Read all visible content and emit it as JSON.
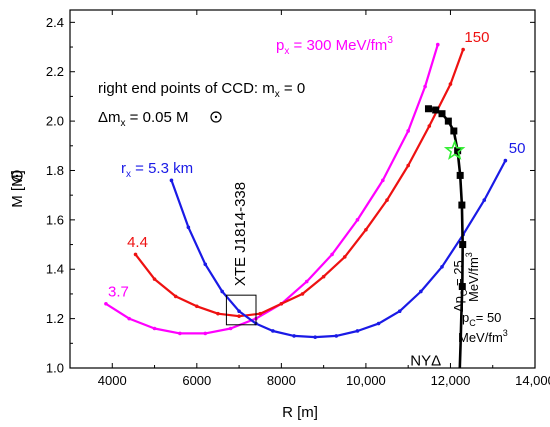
{
  "chart_data": {
    "type": "line",
    "xlabel": "R [m]",
    "ylabel_main": "M [M",
    "ylabel_close": "]",
    "xlim": [
      3000,
      14000
    ],
    "ylim": [
      1.0,
      2.45
    ],
    "x_ticks": [
      4000,
      6000,
      8000,
      10000,
      12000,
      14000
    ],
    "x_tick_labels": [
      "4000",
      "6000",
      "8000",
      "10,000",
      "12,000",
      "14,000"
    ],
    "y_ticks": [
      1.0,
      1.2,
      1.4,
      1.6,
      1.8,
      2.0,
      2.2,
      2.4
    ],
    "y_tick_labels": [
      "1.0",
      "1.2",
      "1.4",
      "1.6",
      "1.8",
      "2.0",
      "2.2",
      "2.4"
    ],
    "colors": {
      "magenta": "#ff00ff",
      "red": "#ee1111",
      "blue": "#1a1ae6",
      "black": "#000000",
      "star": "#33ee33"
    },
    "series": [
      {
        "color": "magenta",
        "points": [
          [
            3850,
            1.26
          ],
          [
            4400,
            1.2
          ],
          [
            5000,
            1.16
          ],
          [
            5600,
            1.14
          ],
          [
            6200,
            1.14
          ],
          [
            6800,
            1.16
          ],
          [
            7400,
            1.2
          ],
          [
            8000,
            1.26
          ],
          [
            8600,
            1.35
          ],
          [
            9200,
            1.46
          ],
          [
            9800,
            1.6
          ],
          [
            10400,
            1.76
          ],
          [
            11000,
            1.96
          ],
          [
            11400,
            2.14
          ],
          [
            11700,
            2.31
          ]
        ]
      },
      {
        "color": "red",
        "points": [
          [
            4550,
            1.46
          ],
          [
            5000,
            1.36
          ],
          [
            5500,
            1.29
          ],
          [
            6000,
            1.25
          ],
          [
            6500,
            1.22
          ],
          [
            7000,
            1.21
          ],
          [
            7500,
            1.22
          ],
          [
            8000,
            1.26
          ],
          [
            8500,
            1.3
          ],
          [
            9000,
            1.37
          ],
          [
            9500,
            1.45
          ],
          [
            10000,
            1.56
          ],
          [
            10500,
            1.68
          ],
          [
            11000,
            1.82
          ],
          [
            11500,
            1.98
          ],
          [
            12000,
            2.15
          ],
          [
            12300,
            2.29
          ]
        ]
      },
      {
        "color": "blue",
        "points": [
          [
            5400,
            1.76
          ],
          [
            5800,
            1.57
          ],
          [
            6200,
            1.42
          ],
          [
            6600,
            1.31
          ],
          [
            7000,
            1.23
          ],
          [
            7400,
            1.18
          ],
          [
            7800,
            1.15
          ],
          [
            8300,
            1.13
          ],
          [
            8800,
            1.125
          ],
          [
            9300,
            1.13
          ],
          [
            9800,
            1.15
          ],
          [
            10300,
            1.18
          ],
          [
            10800,
            1.23
          ],
          [
            11300,
            1.31
          ],
          [
            11800,
            1.41
          ],
          [
            12300,
            1.54
          ],
          [
            12800,
            1.68
          ],
          [
            13300,
            1.84
          ]
        ]
      },
      {
        "color": "black",
        "points": [
          [
            11480,
            2.05
          ],
          [
            11650,
            2.045
          ],
          [
            11800,
            2.03
          ],
          [
            11950,
            2.0
          ],
          [
            12080,
            1.96
          ],
          [
            12170,
            1.88
          ],
          [
            12230,
            1.78
          ],
          [
            12270,
            1.66
          ],
          [
            12290,
            1.5
          ],
          [
            12280,
            1.33
          ],
          [
            12260,
            1.22
          ],
          [
            12240,
            1.1
          ],
          [
            12220,
            1.0
          ]
        ]
      }
    ],
    "black_markers": [
      [
        11480,
        2.05
      ],
      [
        11650,
        2.045
      ],
      [
        11800,
        2.03
      ],
      [
        11950,
        2.0
      ],
      [
        12080,
        1.96
      ],
      [
        12170,
        1.88
      ],
      [
        12230,
        1.78
      ],
      [
        12270,
        1.66
      ],
      [
        12290,
        1.5
      ],
      [
        12280,
        1.33
      ]
    ],
    "star": [
      12100,
      1.88
    ],
    "box": {
      "x": [
        6700,
        7400
      ],
      "y": [
        1.175,
        1.295
      ]
    },
    "curve_labels": [
      {
        "text": "3.7",
        "color": "magenta",
        "x": 3900,
        "y": 1.29
      },
      {
        "text": "4.4",
        "color": "red",
        "x": 4350,
        "y": 1.49
      },
      {
        "text": "150",
        "color": "red",
        "x": 12330,
        "y": 2.32
      },
      {
        "text": "50",
        "color": "blue",
        "x": 13380,
        "y": 1.87
      },
      {
        "text": "NYΔ",
        "color": "black",
        "x": 11050,
        "y": 1.01
      }
    ]
  },
  "annotations": {
    "px_main": "p",
    "px_sub": "x",
    "px_rest": " = 300 MeV/fm",
    "px_sup": "3",
    "rx_main": "r",
    "rx_sub": "x",
    "rx_rest": " = 5.3 km",
    "line1": "right end points of CCD: m",
    "line1_sub": "x",
    "line1_rest": " = 0",
    "line2_a": "Δm",
    "line2_sub": "x",
    "line2_rest": " = 0.05 M",
    "xte": "XTE J1814-338",
    "dpc_a": "Δp",
    "dpc_sub": "C",
    "dpc_rest": " = 25",
    "dpc_unit": "MeV/fm",
    "dpc_sup": "3",
    "pc_main": "p",
    "pc_sub": "C",
    "pc_rest": "= 50",
    "pc_unit": "MeV/fm",
    "pc_sup": "3"
  }
}
